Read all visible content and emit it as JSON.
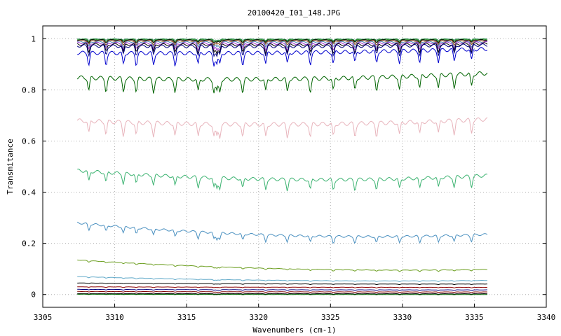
{
  "chart_data": {
    "type": "line",
    "title": "20100420_I01_148.JPG",
    "xlabel": "Wavenumbers (cm-1)",
    "ylabel": "Transmitance",
    "xlim": [
      3305,
      3340
    ],
    "ylim": [
      -0.05,
      1.05
    ],
    "xticks": [
      3305,
      3310,
      3315,
      3320,
      3325,
      3330,
      3335,
      3340
    ],
    "yticks": [
      0,
      0.2,
      0.4,
      0.6,
      0.8,
      1
    ],
    "ytick_labels": [
      "0",
      "0.2",
      "0.4",
      "0.6",
      "0.8",
      "1"
    ],
    "grid": true,
    "x_range": [
      3307.4,
      3335.9
    ],
    "absorption_lines": [
      3308.2,
      3309.4,
      3310.6,
      3311.5,
      3312.7,
      3314.2,
      3315.8,
      3316.9,
      3317.1,
      3317.3,
      3318.9,
      3320.5,
      3322.0,
      3323.6,
      3325.2,
      3326.7,
      3328.2,
      3329.8,
      3331.2,
      3332.5,
      3333.6,
      3334.8
    ],
    "series": [
      {
        "color": "#2e8b57",
        "start": 0.999,
        "mid": 0.998,
        "end": 0.999,
        "dip": 0.005
      },
      {
        "color": "#228b22",
        "start": 0.997,
        "mid": 0.996,
        "end": 0.997,
        "dip": 0.008
      },
      {
        "color": "#000000",
        "start": 0.995,
        "mid": 0.994,
        "end": 0.995,
        "dip": 0.01
      },
      {
        "color": "#8b4513",
        "start": 0.992,
        "mid": 0.99,
        "end": 0.992,
        "dip": 0.015
      },
      {
        "color": "#4682b4",
        "start": 0.988,
        "mid": 0.985,
        "end": 0.988,
        "dip": 0.02
      },
      {
        "color": "#9932cc",
        "start": 0.983,
        "mid": 0.978,
        "end": 0.985,
        "dip": 0.025
      },
      {
        "color": "#000000",
        "start": 0.978,
        "mid": 0.972,
        "end": 0.98,
        "dip": 0.03
      },
      {
        "color": "#000080",
        "start": 0.972,
        "mid": 0.966,
        "end": 0.975,
        "dip": 0.035
      },
      {
        "color": "#0000cd",
        "start": 0.945,
        "mid": 0.938,
        "end": 0.96,
        "dip": 0.045
      },
      {
        "color": "#006400",
        "start": 0.848,
        "mid": 0.828,
        "end": 0.865,
        "dip": 0.05
      },
      {
        "color": "#e8b4bc",
        "start": 0.68,
        "mid": 0.648,
        "end": 0.685,
        "dip": 0.05
      },
      {
        "color": "#3cb371",
        "start": 0.485,
        "mid": 0.425,
        "end": 0.465,
        "dip": 0.04
      },
      {
        "color": "#4a90c0",
        "start": 0.28,
        "mid": 0.205,
        "end": 0.235,
        "dip": 0.025
      },
      {
        "color": "#6b9e1f",
        "start": 0.135,
        "mid": 0.085,
        "end": 0.098,
        "dip": 0.005
      },
      {
        "color": "#5fa8c8",
        "start": 0.07,
        "mid": 0.048,
        "end": 0.055,
        "dip": 0.003
      },
      {
        "color": "#000000",
        "start": 0.045,
        "mid": 0.04,
        "end": 0.041,
        "dip": 0.002
      },
      {
        "color": "#8b0000",
        "start": 0.03,
        "mid": 0.028,
        "end": 0.028,
        "dip": 0.002
      },
      {
        "color": "#000080",
        "start": 0.02,
        "mid": 0.018,
        "end": 0.018,
        "dip": 0.002
      },
      {
        "color": "#800000",
        "start": 0.012,
        "mid": 0.01,
        "end": 0.01,
        "dip": 0.002
      },
      {
        "color": "#000000",
        "start": 0.004,
        "mid": 0.003,
        "end": 0.003,
        "dip": 0.002
      },
      {
        "color": "#006400",
        "start": 0.001,
        "mid": 0.0,
        "end": 0.0,
        "dip": 0.001
      }
    ]
  }
}
